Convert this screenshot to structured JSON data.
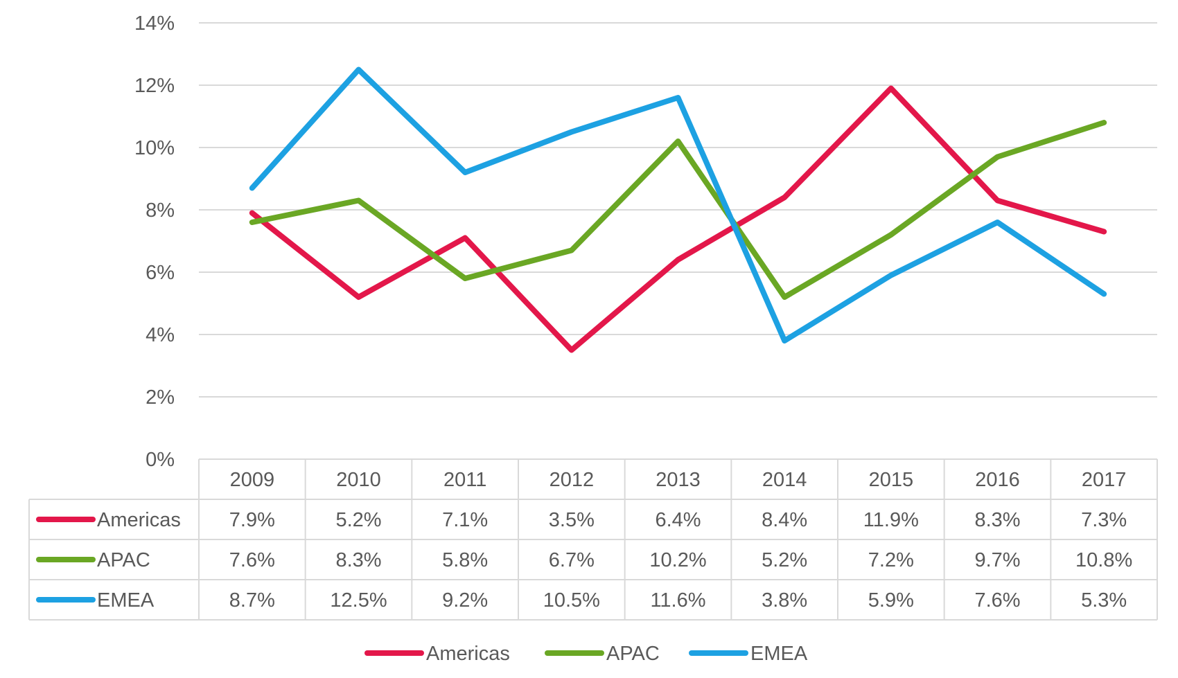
{
  "chart_data": {
    "type": "line",
    "categories": [
      "2009",
      "2010",
      "2011",
      "2012",
      "2013",
      "2014",
      "2015",
      "2016",
      "2017"
    ],
    "series": [
      {
        "name": "Americas",
        "color": "#E3174A",
        "values": [
          7.9,
          5.2,
          7.1,
          3.5,
          6.4,
          8.4,
          11.9,
          8.3,
          7.3
        ],
        "labels": [
          "7.9%",
          "5.2%",
          "7.1%",
          "3.5%",
          "6.4%",
          "8.4%",
          "11.9%",
          "8.3%",
          "7.3%"
        ]
      },
      {
        "name": "APAC",
        "color": "#6AA724",
        "values": [
          7.6,
          8.3,
          5.8,
          6.7,
          10.2,
          5.2,
          7.2,
          9.7,
          10.8
        ],
        "labels": [
          "7.6%",
          "8.3%",
          "5.8%",
          "6.7%",
          "10.2%",
          "5.2%",
          "7.2%",
          "9.7%",
          "10.8%"
        ]
      },
      {
        "name": "EMEA",
        "color": "#1DA1E2",
        "values": [
          8.7,
          12.5,
          9.2,
          10.5,
          11.6,
          3.8,
          5.9,
          7.6,
          5.3
        ],
        "labels": [
          "8.7%",
          "12.5%",
          "9.2%",
          "10.5%",
          "11.6%",
          "3.8%",
          "5.9%",
          "7.6%",
          "5.3%"
        ]
      }
    ],
    "y_ticks": [
      {
        "value": 0,
        "label": "0%"
      },
      {
        "value": 2,
        "label": "2%"
      },
      {
        "value": 4,
        "label": "4%"
      },
      {
        "value": 6,
        "label": "6%"
      },
      {
        "value": 8,
        "label": "8%"
      },
      {
        "value": 10,
        "label": "10%"
      },
      {
        "value": 12,
        "label": "12%"
      },
      {
        "value": 14,
        "label": "14%"
      }
    ],
    "ylim": [
      0,
      14
    ],
    "grid": true,
    "data_table": true,
    "legend_position": "bottom-center"
  }
}
